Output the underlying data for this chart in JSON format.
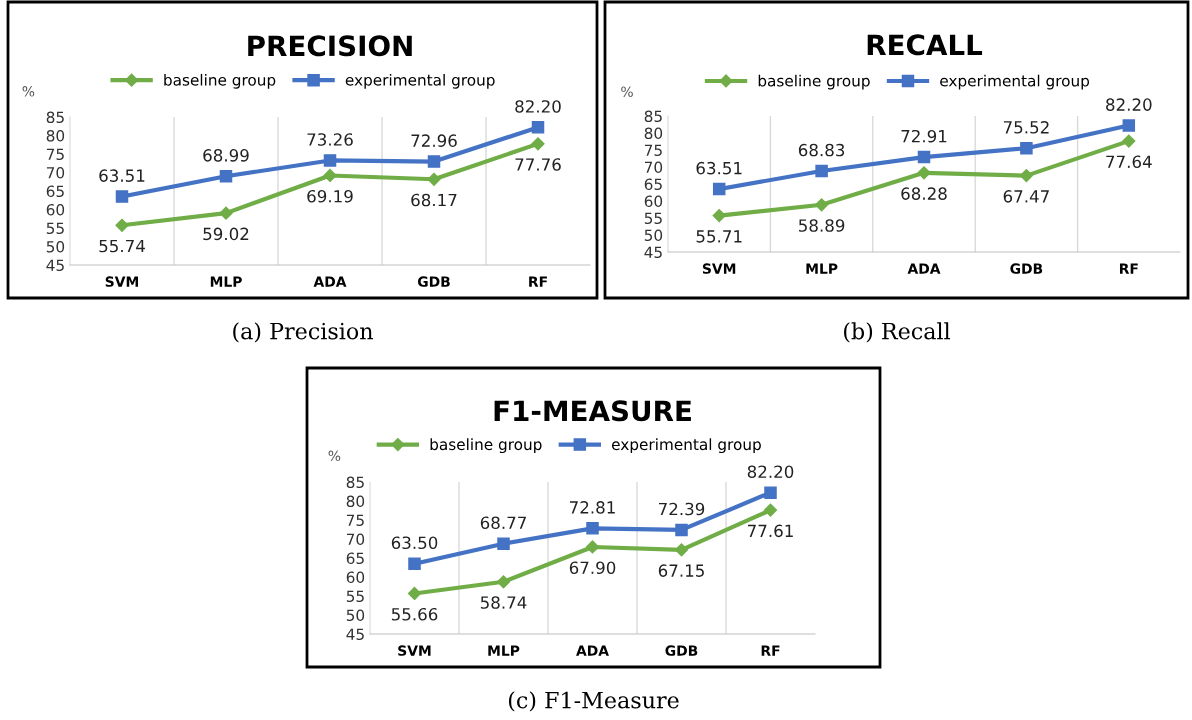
{
  "chart_data": [
    {
      "type": "line",
      "title": "PRECISION",
      "ylabel": "%",
      "categories": [
        "SVM",
        "MLP",
        "ADA",
        "GDB",
        "RF"
      ],
      "ylim": [
        45,
        85
      ],
      "yticks": [
        45,
        50,
        55,
        60,
        65,
        70,
        75,
        80,
        85
      ],
      "grid": "x",
      "legend": "top",
      "annotations": [
        "(a) Precision"
      ],
      "series": [
        {
          "name": "baseline group",
          "color": "#70ad47",
          "marker": "diamond",
          "values": [
            55.74,
            59.02,
            69.19,
            68.17,
            77.76
          ],
          "value_labels": [
            "55.74",
            "59.02",
            "69.19",
            "68.17",
            "77.76"
          ]
        },
        {
          "name": "experimental group",
          "color": "#4472c4",
          "marker": "square",
          "values": [
            63.51,
            68.99,
            73.26,
            72.96,
            82.2
          ],
          "value_labels": [
            "63.51",
            "68.99",
            "73.26",
            "72.96",
            "82.20"
          ]
        }
      ]
    },
    {
      "type": "line",
      "title": "RECALL",
      "ylabel": "%",
      "categories": [
        "SVM",
        "MLP",
        "ADA",
        "GDB",
        "RF"
      ],
      "ylim": [
        45,
        85
      ],
      "yticks": [
        45,
        50,
        55,
        60,
        65,
        70,
        75,
        80,
        85
      ],
      "grid": "x",
      "legend": "top",
      "annotations": [
        "(b) Recall"
      ],
      "series": [
        {
          "name": "baseline group",
          "color": "#70ad47",
          "marker": "diamond",
          "values": [
            55.71,
            58.89,
            68.28,
            67.47,
            77.64
          ],
          "value_labels": [
            "55.71",
            "58.89",
            "68.28",
            "67.47",
            "77.64"
          ]
        },
        {
          "name": "experimental group",
          "color": "#4472c4",
          "marker": "square",
          "values": [
            63.51,
            68.83,
            72.91,
            75.52,
            82.2
          ],
          "value_labels": [
            "63.51",
            "68.83",
            "72.91",
            "75.52",
            "82.20"
          ]
        }
      ]
    },
    {
      "type": "line",
      "title": "F1-MEASURE",
      "ylabel": "%",
      "categories": [
        "SVM",
        "MLP",
        "ADA",
        "GDB",
        "RF"
      ],
      "ylim": [
        45,
        85
      ],
      "yticks": [
        45,
        50,
        55,
        60,
        65,
        70,
        75,
        80,
        85
      ],
      "grid": "x",
      "legend": "top",
      "annotations": [
        "(c) F1-Measure"
      ],
      "series": [
        {
          "name": "baseline group",
          "color": "#70ad47",
          "marker": "diamond",
          "values": [
            55.66,
            58.74,
            67.9,
            67.15,
            77.61
          ],
          "value_labels": [
            "55.66",
            "58.74",
            "67.90",
            "67.15",
            "77.61"
          ]
        },
        {
          "name": "experimental group",
          "color": "#4472c4",
          "marker": "square",
          "values": [
            63.5,
            68.77,
            72.81,
            72.39,
            82.2
          ],
          "value_labels": [
            "63.50",
            "68.77",
            "72.81",
            "72.39",
            "82.20"
          ]
        }
      ]
    }
  ]
}
